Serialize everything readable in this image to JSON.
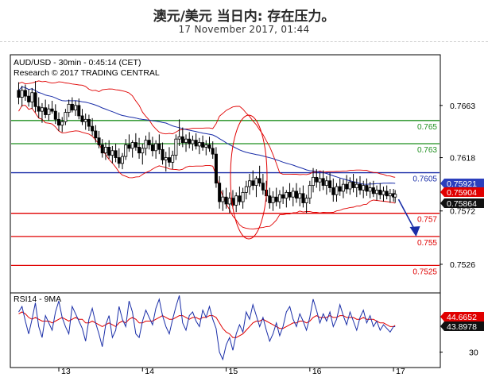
{
  "header": {
    "title": "澳元/美元 当日内: 存在压力。",
    "date": "17 November 2017, 01:44"
  },
  "chart_data": {
    "type": "candlestick",
    "symbol_line": "AUD/USD - 30min - 0:45:14 (CET)",
    "copyright": "Research © 2017 TRADING CENTRAL",
    "price_axis": {
      "range": [
        0.7502,
        0.7706
      ],
      "ticks": [
        "0.7663",
        "0.7618",
        "0.7572",
        "0.7526"
      ]
    },
    "x_axis": {
      "ticks": [
        "13",
        "14",
        "15",
        "16",
        "17"
      ]
    },
    "levels": [
      {
        "label": "0.765",
        "value": 0.765,
        "color": "#1f8f1f"
      },
      {
        "label": "0.763",
        "value": 0.763,
        "color": "#1f8f1f"
      },
      {
        "label": "0.7605",
        "value": 0.7605,
        "color": "#1a2ea8"
      },
      {
        "label": "0.757",
        "value": 0.757,
        "color": "#e00000"
      },
      {
        "label": "0.755",
        "value": 0.755,
        "color": "#e00000"
      },
      {
        "label": "0.7525",
        "value": 0.7525,
        "color": "#e00000"
      }
    ],
    "price_tags": [
      {
        "label": "0.75921",
        "value": 0.75921,
        "bg": "#2b3fbd",
        "fg": "#ffffff"
      },
      {
        "label": "0.75904",
        "value": 0.75904,
        "bg": "#e00000",
        "fg": "#ffffff"
      },
      {
        "label": "0.75864",
        "value": 0.75864,
        "bg": "#111111",
        "fg": "#ffffff"
      }
    ],
    "projection": {
      "from": {
        "day": 17.06,
        "price": 0.7582
      },
      "to": {
        "day": 17.27,
        "price": 0.7552
      },
      "color": "#1a2ea8"
    },
    "candles": [
      [
        12.52,
        0.7676,
        0.7683,
        0.7664,
        0.767
      ],
      [
        12.56,
        0.767,
        0.768,
        0.7662,
        0.7676
      ],
      [
        12.6,
        0.7676,
        0.7681,
        0.7667,
        0.7671
      ],
      [
        12.64,
        0.7671,
        0.7677,
        0.7662,
        0.7666
      ],
      [
        12.68,
        0.7666,
        0.7678,
        0.766,
        0.7674
      ],
      [
        12.72,
        0.7674,
        0.7684,
        0.7657,
        0.7662
      ],
      [
        12.76,
        0.7662,
        0.767,
        0.7652,
        0.7658
      ],
      [
        12.8,
        0.7658,
        0.7665,
        0.7648,
        0.7661
      ],
      [
        12.84,
        0.7661,
        0.7668,
        0.7652,
        0.7655
      ],
      [
        12.88,
        0.7655,
        0.7664,
        0.765,
        0.766
      ],
      [
        12.92,
        0.766,
        0.7667,
        0.7656,
        0.7658
      ],
      [
        12.96,
        0.7658,
        0.7664,
        0.7647,
        0.7651
      ],
      [
        13.0,
        0.7651,
        0.7657,
        0.7641,
        0.7646
      ],
      [
        13.04,
        0.7646,
        0.7653,
        0.764,
        0.7649
      ],
      [
        13.08,
        0.7649,
        0.766,
        0.7646,
        0.7657
      ],
      [
        13.12,
        0.7657,
        0.7668,
        0.7653,
        0.7664
      ],
      [
        13.16,
        0.7664,
        0.767,
        0.7657,
        0.7659
      ],
      [
        13.2,
        0.7659,
        0.7667,
        0.7654,
        0.7663
      ],
      [
        13.24,
        0.7663,
        0.7669,
        0.7651,
        0.7654
      ],
      [
        13.28,
        0.7654,
        0.766,
        0.7646,
        0.7649
      ],
      [
        13.32,
        0.7649,
        0.7656,
        0.7642,
        0.7651
      ],
      [
        13.36,
        0.7651,
        0.7655,
        0.7641,
        0.7645
      ],
      [
        13.4,
        0.7645,
        0.7652,
        0.7637,
        0.7641
      ],
      [
        13.44,
        0.7641,
        0.7646,
        0.7631,
        0.7635
      ],
      [
        13.48,
        0.7635,
        0.7641,
        0.7626,
        0.7629
      ],
      [
        13.52,
        0.7629,
        0.7634,
        0.7618,
        0.7622
      ],
      [
        13.56,
        0.7622,
        0.7631,
        0.7616,
        0.7627
      ],
      [
        13.6,
        0.7627,
        0.7633,
        0.7617,
        0.762
      ],
      [
        13.64,
        0.762,
        0.7628,
        0.7613,
        0.7624
      ],
      [
        13.68,
        0.7624,
        0.763,
        0.7614,
        0.7618
      ],
      [
        13.72,
        0.7618,
        0.7626,
        0.7609,
        0.7613
      ],
      [
        13.76,
        0.7613,
        0.7622,
        0.7608,
        0.7619
      ],
      [
        13.8,
        0.7619,
        0.7634,
        0.7616,
        0.7629
      ],
      [
        13.84,
        0.7629,
        0.7638,
        0.7623,
        0.7626
      ],
      [
        13.88,
        0.7626,
        0.7633,
        0.7618,
        0.7631
      ],
      [
        13.92,
        0.7631,
        0.7639,
        0.7624,
        0.7627
      ],
      [
        13.96,
        0.7627,
        0.7635,
        0.7617,
        0.7622
      ],
      [
        14.0,
        0.7622,
        0.763,
        0.7612,
        0.7626
      ],
      [
        14.04,
        0.7626,
        0.7637,
        0.762,
        0.7633
      ],
      [
        14.08,
        0.7633,
        0.764,
        0.7625,
        0.7629
      ],
      [
        14.12,
        0.7629,
        0.7636,
        0.7619,
        0.7624
      ],
      [
        14.16,
        0.7624,
        0.7633,
        0.7617,
        0.763
      ],
      [
        14.2,
        0.763,
        0.7638,
        0.7621,
        0.7625
      ],
      [
        14.24,
        0.7625,
        0.7631,
        0.7612,
        0.7616
      ],
      [
        14.28,
        0.7616,
        0.7623,
        0.7606,
        0.7618
      ],
      [
        14.32,
        0.7618,
        0.7627,
        0.761,
        0.7614
      ],
      [
        14.36,
        0.7614,
        0.7624,
        0.7608,
        0.762
      ],
      [
        14.4,
        0.762,
        0.7638,
        0.7616,
        0.7634
      ],
      [
        14.44,
        0.7634,
        0.7651,
        0.7628,
        0.7636
      ],
      [
        14.48,
        0.7636,
        0.7644,
        0.7627,
        0.7631
      ],
      [
        14.52,
        0.7631,
        0.7638,
        0.7623,
        0.7634
      ],
      [
        14.56,
        0.7634,
        0.764,
        0.7626,
        0.763
      ],
      [
        14.6,
        0.763,
        0.7637,
        0.7624,
        0.7633
      ],
      [
        14.64,
        0.7633,
        0.7639,
        0.7625,
        0.7628
      ],
      [
        14.68,
        0.7628,
        0.7635,
        0.7621,
        0.7631
      ],
      [
        14.72,
        0.7631,
        0.7637,
        0.7624,
        0.7627
      ],
      [
        14.76,
        0.7627,
        0.7633,
        0.762,
        0.7629
      ],
      [
        14.8,
        0.7629,
        0.7636,
        0.7623,
        0.7626
      ],
      [
        14.84,
        0.7626,
        0.7632,
        0.7617,
        0.7621
      ],
      [
        14.88,
        0.7621,
        0.7627,
        0.7592,
        0.7596
      ],
      [
        14.92,
        0.7596,
        0.7602,
        0.7574,
        0.758
      ],
      [
        14.96,
        0.758,
        0.759,
        0.7572,
        0.7584
      ],
      [
        15.0,
        0.7584,
        0.7592,
        0.7574,
        0.7578
      ],
      [
        15.04,
        0.7578,
        0.7588,
        0.757,
        0.7583
      ],
      [
        15.08,
        0.7583,
        0.759,
        0.7574,
        0.7577
      ],
      [
        15.12,
        0.7577,
        0.7588,
        0.7571,
        0.7585
      ],
      [
        15.16,
        0.7585,
        0.7593,
        0.7577,
        0.758
      ],
      [
        15.2,
        0.758,
        0.7592,
        0.7574,
        0.7588
      ],
      [
        15.24,
        0.7588,
        0.7598,
        0.7582,
        0.7593
      ],
      [
        15.28,
        0.7593,
        0.7604,
        0.7586,
        0.7598
      ],
      [
        15.32,
        0.7598,
        0.7607,
        0.759,
        0.7594
      ],
      [
        15.36,
        0.7594,
        0.7602,
        0.7584,
        0.76
      ],
      [
        15.4,
        0.76,
        0.7611,
        0.7593,
        0.7596
      ],
      [
        15.44,
        0.7596,
        0.7604,
        0.7586,
        0.759
      ],
      [
        15.48,
        0.759,
        0.7598,
        0.758,
        0.7585
      ],
      [
        15.52,
        0.7585,
        0.7592,
        0.7574,
        0.7579
      ],
      [
        15.56,
        0.7579,
        0.7589,
        0.7572,
        0.7584
      ],
      [
        15.6,
        0.7584,
        0.7592,
        0.7576,
        0.758
      ],
      [
        15.64,
        0.758,
        0.759,
        0.7574,
        0.7586
      ],
      [
        15.68,
        0.7586,
        0.7593,
        0.7578,
        0.7583
      ],
      [
        15.72,
        0.7583,
        0.759,
        0.7575,
        0.7588
      ],
      [
        15.76,
        0.7588,
        0.7596,
        0.7581,
        0.7584
      ],
      [
        15.8,
        0.7584,
        0.7592,
        0.7576,
        0.7589
      ],
      [
        15.84,
        0.7589,
        0.7596,
        0.7579,
        0.7583
      ],
      [
        15.88,
        0.7583,
        0.7592,
        0.7576,
        0.7587
      ],
      [
        15.92,
        0.7587,
        0.7594,
        0.7575,
        0.7579
      ],
      [
        15.96,
        0.7579,
        0.7586,
        0.757,
        0.7583
      ],
      [
        16.0,
        0.7583,
        0.7598,
        0.7578,
        0.7594
      ],
      [
        16.04,
        0.7594,
        0.7609,
        0.7588,
        0.7601
      ],
      [
        16.08,
        0.7601,
        0.7608,
        0.7592,
        0.7597
      ],
      [
        16.12,
        0.7597,
        0.7605,
        0.7589,
        0.76
      ],
      [
        16.16,
        0.76,
        0.7607,
        0.759,
        0.7594
      ],
      [
        16.2,
        0.7594,
        0.7602,
        0.7586,
        0.7598
      ],
      [
        16.24,
        0.7598,
        0.7605,
        0.7588,
        0.7592
      ],
      [
        16.28,
        0.7592,
        0.76,
        0.758,
        0.7586
      ],
      [
        16.32,
        0.7586,
        0.7596,
        0.758,
        0.7593
      ],
      [
        16.36,
        0.7593,
        0.76,
        0.7585,
        0.7589
      ],
      [
        16.4,
        0.7589,
        0.7599,
        0.7583,
        0.7595
      ],
      [
        16.44,
        0.7595,
        0.7603,
        0.7587,
        0.7591
      ],
      [
        16.48,
        0.7591,
        0.7601,
        0.7586,
        0.7597
      ],
      [
        16.52,
        0.7597,
        0.7604,
        0.7588,
        0.7592
      ],
      [
        16.56,
        0.7592,
        0.76,
        0.7584,
        0.7595
      ],
      [
        16.6,
        0.7595,
        0.7602,
        0.7586,
        0.759
      ],
      [
        16.64,
        0.759,
        0.7598,
        0.7583,
        0.7594
      ],
      [
        16.68,
        0.7594,
        0.76,
        0.7585,
        0.7589
      ],
      [
        16.72,
        0.7589,
        0.7597,
        0.7583,
        0.7592
      ],
      [
        16.76,
        0.7592,
        0.7598,
        0.7584,
        0.7587
      ],
      [
        16.8,
        0.7587,
        0.7594,
        0.7581,
        0.759
      ],
      [
        16.84,
        0.759,
        0.7596,
        0.7582,
        0.7586
      ],
      [
        16.88,
        0.7586,
        0.7593,
        0.758,
        0.7589
      ],
      [
        16.92,
        0.7589,
        0.7594,
        0.7582,
        0.7585
      ],
      [
        16.96,
        0.7585,
        0.7591,
        0.7579,
        0.7587
      ],
      [
        17.0,
        0.7587,
        0.7591,
        0.758,
        0.7584
      ],
      [
        17.02,
        0.7584,
        0.759,
        0.7579,
        0.75864
      ]
    ],
    "rsi": {
      "title": "RSI14 - 9MA",
      "range": [
        22,
        62
      ],
      "ticks": [
        "30"
      ],
      "tags": [
        {
          "label": "44.6652",
          "value": 44.6652,
          "bg": "#e00000",
          "fg": "#ffffff"
        },
        {
          "label": "43.8978",
          "value": 43.8978,
          "bg": "#111111",
          "fg": "#ffffff"
        }
      ],
      "rsi_values": [
        52,
        55,
        47,
        40,
        48,
        57,
        44,
        38,
        50,
        46,
        42,
        52,
        58,
        49,
        44,
        40,
        55,
        51,
        47,
        43,
        36,
        48,
        54,
        46,
        40,
        33,
        45,
        50,
        38,
        42,
        55,
        48,
        44,
        58,
        52,
        40,
        38,
        47,
        53,
        49,
        45,
        54,
        59,
        50,
        44,
        40,
        48,
        55,
        61,
        46,
        42,
        50,
        52,
        47,
        44,
        53,
        49,
        55,
        48,
        43,
        30,
        26,
        34,
        38,
        31,
        40,
        45,
        41,
        52,
        48,
        56,
        50,
        44,
        49,
        42,
        36,
        40,
        46,
        39,
        44,
        52,
        55,
        48,
        44,
        51,
        47,
        42,
        49,
        59,
        53,
        46,
        51,
        47,
        52,
        44,
        48,
        56,
        50,
        45,
        52,
        47,
        42,
        49,
        53,
        46,
        50,
        44,
        47,
        42,
        45,
        43,
        41,
        44,
        43.9
      ],
      "ma_values": [
        51,
        52,
        51,
        49,
        48,
        49,
        48,
        47,
        47,
        47,
        46,
        47,
        48,
        49,
        48,
        47,
        48,
        49,
        48,
        48,
        46,
        46,
        47,
        46,
        45,
        44,
        45,
        46,
        45,
        44,
        46,
        47,
        46,
        48,
        49,
        48,
        46,
        46,
        47,
        47,
        47,
        48,
        49,
        50,
        49,
        48,
        48,
        49,
        50,
        50,
        49,
        48,
        49,
        49,
        48,
        49,
        49,
        50,
        50,
        49,
        46,
        43,
        41,
        40,
        38,
        38,
        39,
        40,
        42,
        44,
        46,
        47,
        47,
        48,
        47,
        46,
        45,
        44,
        43,
        43,
        44,
        45,
        46,
        46,
        47,
        47,
        46,
        47,
        49,
        50,
        49,
        49,
        49,
        50,
        49,
        49,
        50,
        50,
        49,
        49,
        49,
        48,
        48,
        49,
        48,
        48,
        48,
        47,
        46,
        46,
        45,
        44,
        44,
        44.7
      ]
    }
  }
}
